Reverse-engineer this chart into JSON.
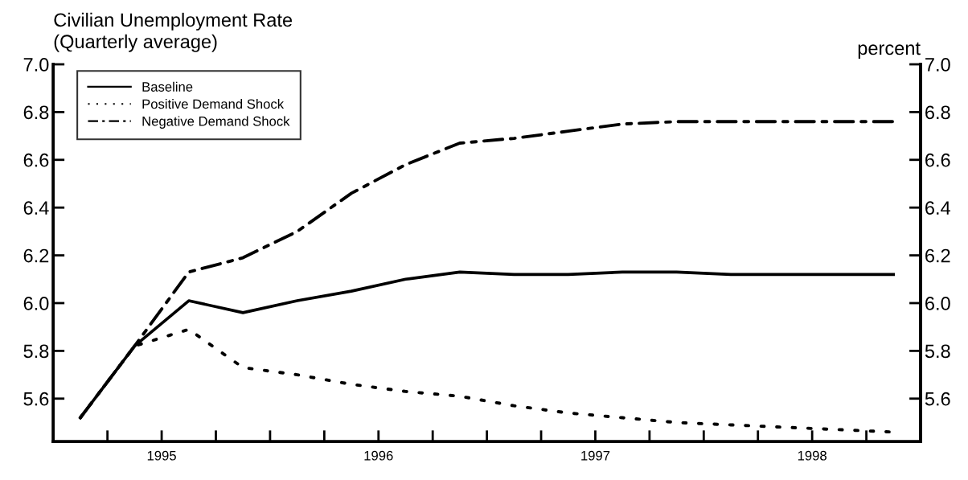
{
  "chart_data": {
    "type": "line",
    "title": "Civilian Unemployment Rate",
    "subtitle": "(Quarterly average)",
    "y2label": "percent",
    "x": [
      1994.625,
      1994.875,
      1995.125,
      1995.375,
      1995.625,
      1995.875,
      1996.125,
      1996.375,
      1996.625,
      1996.875,
      1997.125,
      1997.375,
      1997.625,
      1997.875,
      1998.125,
      1998.375
    ],
    "series": [
      {
        "name": "Baseline",
        "color": "#000000",
        "line_style": "solid",
        "values": [
          5.52,
          5.82,
          6.01,
          5.96,
          6.01,
          6.05,
          6.1,
          6.13,
          6.12,
          6.12,
          6.13,
          6.13,
          6.12,
          6.12,
          6.12,
          6.12
        ]
      },
      {
        "name": "Positive Demand Shock",
        "color": "#000000",
        "line_style": "dotted",
        "values": [
          5.52,
          5.82,
          5.89,
          5.73,
          5.7,
          5.66,
          5.63,
          5.61,
          5.57,
          5.54,
          5.52,
          5.5,
          5.49,
          5.48,
          5.47,
          5.46
        ]
      },
      {
        "name": "Negative Demand Shock",
        "color": "#000000",
        "line_style": "dashdot",
        "values": [
          5.52,
          5.82,
          6.13,
          6.19,
          6.3,
          6.46,
          6.58,
          6.67,
          6.69,
          6.72,
          6.75,
          6.76,
          6.76,
          6.76,
          6.76,
          6.76
        ]
      }
    ],
    "xlim": [
      1994.5,
      1998.5
    ],
    "xticks": [
      {
        "value": 1994.75,
        "label": null
      },
      {
        "value": 1995.0,
        "label": "1995"
      },
      {
        "value": 1995.25,
        "label": null
      },
      {
        "value": 1995.5,
        "label": null
      },
      {
        "value": 1995.75,
        "label": null
      },
      {
        "value": 1996.0,
        "label": "1996"
      },
      {
        "value": 1996.25,
        "label": null
      },
      {
        "value": 1996.5,
        "label": null
      },
      {
        "value": 1996.75,
        "label": null
      },
      {
        "value": 1997.0,
        "label": "1997"
      },
      {
        "value": 1997.25,
        "label": null
      },
      {
        "value": 1997.5,
        "label": null
      },
      {
        "value": 1997.75,
        "label": null
      },
      {
        "value": 1998.0,
        "label": "1998"
      },
      {
        "value": 1998.25,
        "label": null
      }
    ],
    "ylim": [
      5.42,
      7.0
    ],
    "yticks": [
      {
        "value": 5.6,
        "label": "5.6"
      },
      {
        "value": 5.8,
        "label": "5.8"
      },
      {
        "value": 6.0,
        "label": "6.0"
      },
      {
        "value": 6.2,
        "label": "6.2"
      },
      {
        "value": 6.4,
        "label": "6.4"
      },
      {
        "value": 6.6,
        "label": "6.6"
      },
      {
        "value": 6.8,
        "label": "6.8"
      },
      {
        "value": 7.0,
        "label": "7.0"
      }
    ],
    "y2lim": [
      5.42,
      7.0
    ],
    "y2ticks": [
      {
        "value": 5.6,
        "label": "5.6"
      },
      {
        "value": 5.8,
        "label": "5.8"
      },
      {
        "value": 6.0,
        "label": "6.0"
      },
      {
        "value": 6.2,
        "label": "6.2"
      },
      {
        "value": 6.4,
        "label": "6.4"
      },
      {
        "value": 6.6,
        "label": "6.6"
      },
      {
        "value": 6.8,
        "label": "6.8"
      },
      {
        "value": 7.0,
        "label": "7.0"
      }
    ],
    "grid": false,
    "legend": "top left",
    "marker": "none"
  }
}
